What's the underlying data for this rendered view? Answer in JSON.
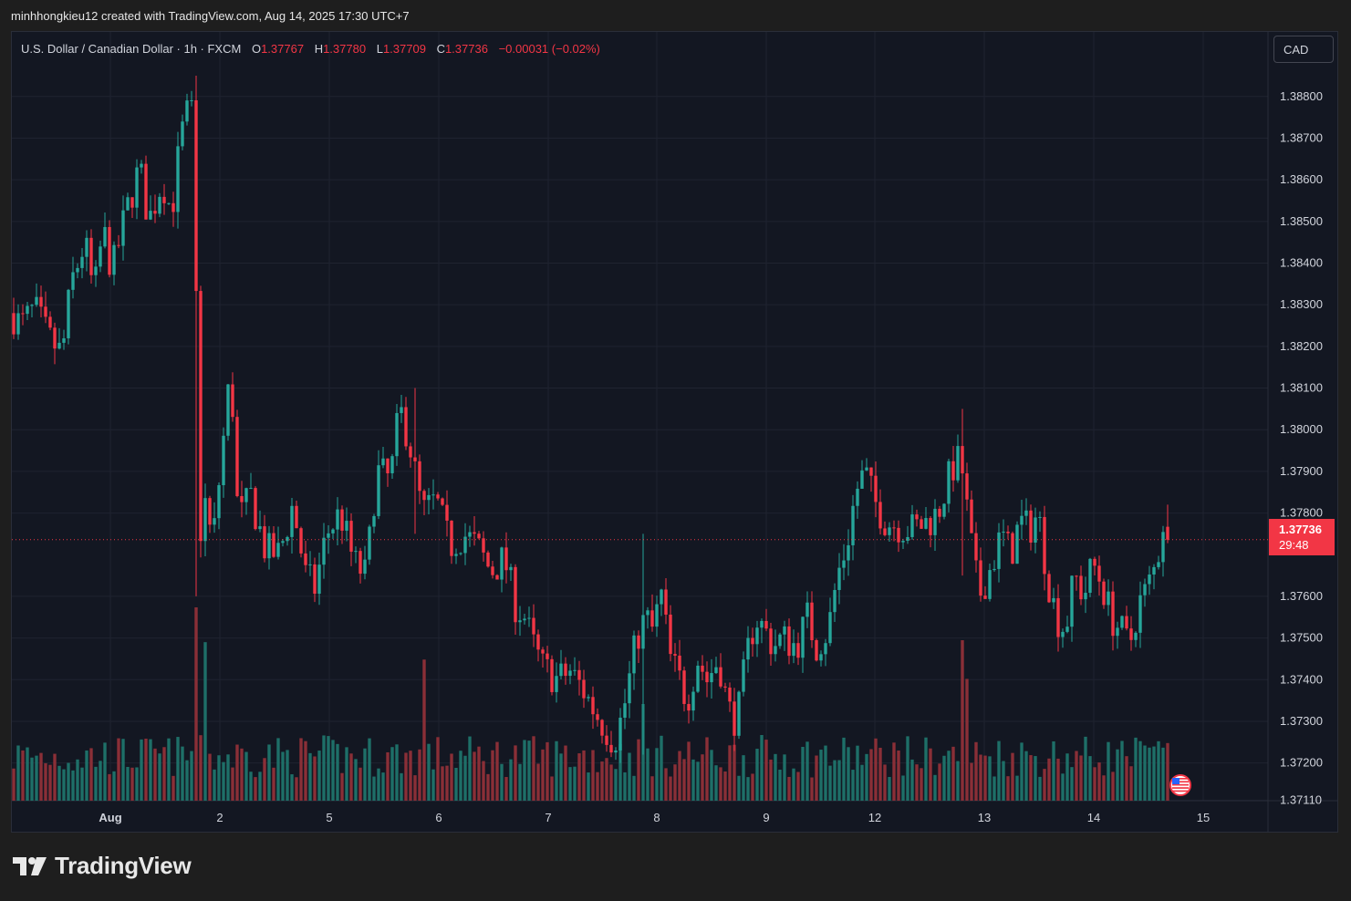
{
  "header": {
    "caption": "minhhongkieu12 created with TradingView.com, Aug 14, 2025 17:30 UTC+7"
  },
  "legend": {
    "symbol": "U.S. Dollar / Canadian Dollar · 1h · FXCM",
    "open_label": "O",
    "open": "1.37767",
    "high_label": "H",
    "high": "1.37780",
    "low_label": "L",
    "low": "1.37709",
    "close_label": "C",
    "close": "1.37736",
    "change": "−0.00031 (−0.02%)"
  },
  "currency_button": {
    "label": "CAD",
    "icon": "chevron-down-icon"
  },
  "price_tag": {
    "price": "1.37736",
    "countdown": "29:48"
  },
  "brand": {
    "name": "TradingView",
    "logo": "tradingview-logo"
  },
  "colors": {
    "up": "#26a69a",
    "down": "#f23645",
    "bg": "#131722",
    "grid": "#1f2330",
    "text": "#d1d4dc",
    "up_vol": "#1e6f68",
    "down_vol": "#8a2f37"
  },
  "chart_data": {
    "type": "candlestick",
    "title": "U.S. Dollar / Canadian Dollar · 1h · FXCM",
    "x_tick_labels": [
      "Aug",
      "2",
      "5",
      "6",
      "7",
      "8",
      "9",
      "12",
      "13",
      "14",
      "15"
    ],
    "y_tick_labels": [
      "1.38800",
      "1.38700",
      "1.38600",
      "1.38500",
      "1.38400",
      "1.38300",
      "1.38200",
      "1.38100",
      "1.38000",
      "1.37900",
      "1.37800",
      "1.37600",
      "1.37500",
      "1.37400",
      "1.37300",
      "1.37200",
      "1.37110"
    ],
    "y_tick_values": [
      1.388,
      1.387,
      1.386,
      1.385,
      1.384,
      1.383,
      1.382,
      1.381,
      1.38,
      1.379,
      1.378,
      1.376,
      1.375,
      1.374,
      1.373,
      1.372,
      1.3711
    ],
    "ylim": [
      1.37035,
      1.38955
    ],
    "last_price": 1.37736,
    "grid": true,
    "close_path": [
      [
        0,
        1.3828
      ],
      [
        10,
        1.3825
      ],
      [
        25,
        1.3829
      ],
      [
        40,
        1.3822
      ],
      [
        55,
        1.3818
      ],
      [
        65,
        1.3835
      ],
      [
        80,
        1.3845
      ],
      [
        90,
        1.3832
      ],
      [
        100,
        1.3848
      ],
      [
        110,
        1.3838
      ],
      [
        125,
        1.3852
      ],
      [
        140,
        1.3863
      ],
      [
        150,
        1.385
      ],
      [
        165,
        1.386
      ],
      [
        175,
        1.3852
      ],
      [
        185,
        1.387
      ],
      [
        195,
        1.3878
      ],
      [
        200,
        1.3872
      ],
      [
        205,
        1.377
      ],
      [
        210,
        1.3785
      ],
      [
        220,
        1.3772
      ],
      [
        232,
        1.3798
      ],
      [
        240,
        1.3815
      ],
      [
        248,
        1.3778
      ],
      [
        262,
        1.3784
      ],
      [
        278,
        1.3771
      ],
      [
        293,
        1.377
      ],
      [
        308,
        1.3782
      ],
      [
        322,
        1.3765
      ],
      [
        332,
        1.3762
      ],
      [
        345,
        1.3775
      ],
      [
        360,
        1.378
      ],
      [
        375,
        1.3768
      ],
      [
        388,
        1.3765
      ],
      [
        400,
        1.379
      ],
      [
        415,
        1.3788
      ],
      [
        425,
        1.3805
      ],
      [
        435,
        1.3798
      ],
      [
        450,
        1.378
      ],
      [
        465,
        1.3783
      ],
      [
        480,
        1.3772
      ],
      [
        495,
        1.3775
      ],
      [
        510,
        1.3772
      ],
      [
        525,
        1.3766
      ],
      [
        540,
        1.3769
      ],
      [
        552,
        1.3758
      ],
      [
        562,
        1.3755
      ],
      [
        572,
        1.3748
      ],
      [
        582,
        1.3743
      ],
      [
        598,
        1.374
      ],
      [
        612,
        1.3742
      ],
      [
        625,
        1.3738
      ],
      [
        640,
        1.3732
      ],
      [
        652,
        1.3728
      ],
      [
        660,
        1.3725
      ],
      [
        670,
        1.3732
      ],
      [
        685,
        1.375
      ],
      [
        695,
        1.3755
      ],
      [
        702,
        1.3752
      ],
      [
        712,
        1.376
      ],
      [
        722,
        1.3745
      ],
      [
        732,
        1.374
      ],
      [
        740,
        1.3735
      ],
      [
        752,
        1.3745
      ],
      [
        762,
        1.374
      ],
      [
        775,
        1.3745
      ],
      [
        785,
        1.3733
      ],
      [
        795,
        1.373
      ],
      [
        805,
        1.3745
      ],
      [
        815,
        1.3755
      ],
      [
        825,
        1.3752
      ],
      [
        835,
        1.3748
      ],
      [
        845,
        1.375
      ],
      [
        860,
        1.3748
      ],
      [
        872,
        1.3755
      ],
      [
        882,
        1.3748
      ],
      [
        895,
        1.3752
      ],
      [
        905,
        1.3765
      ],
      [
        915,
        1.3772
      ],
      [
        925,
        1.3785
      ],
      [
        935,
        1.379
      ],
      [
        945,
        1.3783
      ],
      [
        958,
        1.3778
      ],
      [
        972,
        1.3777
      ],
      [
        985,
        1.3776
      ],
      [
        995,
        1.3777
      ],
      [
        1005,
        1.3778
      ],
      [
        1015,
        1.378
      ],
      [
        1025,
        1.3787
      ],
      [
        1035,
        1.3793
      ],
      [
        1042,
        1.379
      ],
      [
        1050,
        1.3775
      ],
      [
        1060,
        1.376
      ],
      [
        1075,
        1.3768
      ],
      [
        1085,
        1.3775
      ],
      [
        1095,
        1.377
      ],
      [
        1105,
        1.3778
      ],
      [
        1115,
        1.3776
      ],
      [
        1125,
        1.378
      ],
      [
        1135,
        1.3765
      ],
      [
        1145,
        1.3755
      ],
      [
        1155,
        1.3752
      ],
      [
        1165,
        1.3765
      ],
      [
        1175,
        1.376
      ],
      [
        1185,
        1.3768
      ],
      [
        1195,
        1.3763
      ],
      [
        1205,
        1.3755
      ],
      [
        1215,
        1.3752
      ],
      [
        1225,
        1.3748
      ],
      [
        1235,
        1.3758
      ],
      [
        1245,
        1.3762
      ],
      [
        1255,
        1.3768
      ],
      [
        1262,
        1.3778
      ],
      [
        1270,
        1.3774
      ]
    ],
    "spikes": [
      [
        204,
        1.3885,
        1.376
      ],
      [
        1040,
        1.3805,
        1.3765
      ],
      [
        690,
        1.3775,
        1.3722
      ],
      [
        440,
        1.381,
        1.3775
      ]
    ],
    "volume_spikes": [
      [
        204,
        1.0
      ],
      [
        210,
        0.82
      ],
      [
        452,
        0.73
      ],
      [
        1040,
        0.83
      ],
      [
        1045,
        0.63
      ],
      [
        690,
        0.5
      ]
    ]
  }
}
